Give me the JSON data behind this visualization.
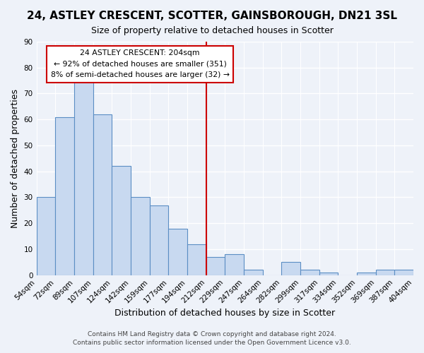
{
  "title": "24, ASTLEY CRESCENT, SCOTTER, GAINSBOROUGH, DN21 3SL",
  "subtitle": "Size of property relative to detached houses in Scotter",
  "xlabel": "Distribution of detached houses by size in Scotter",
  "ylabel": "Number of detached properties",
  "bar_color": "#c8d9f0",
  "bar_edge_color": "#5b8ec4",
  "bin_labels": [
    "54sqm",
    "72sqm",
    "89sqm",
    "107sqm",
    "124sqm",
    "142sqm",
    "159sqm",
    "177sqm",
    "194sqm",
    "212sqm",
    "229sqm",
    "247sqm",
    "264sqm",
    "282sqm",
    "299sqm",
    "317sqm",
    "334sqm",
    "352sqm",
    "369sqm",
    "387sqm",
    "404sqm"
  ],
  "bar_heights": [
    30,
    61,
    75,
    62,
    42,
    30,
    27,
    18,
    12,
    7,
    8,
    2,
    0,
    5,
    2,
    1,
    0,
    1,
    2,
    2
  ],
  "ylim": [
    0,
    90
  ],
  "yticks": [
    0,
    10,
    20,
    30,
    40,
    50,
    60,
    70,
    80,
    90
  ],
  "vline_x": 8.5,
  "vline_color": "#cc0000",
  "annotation_title": "24 ASTLEY CRESCENT: 204sqm",
  "annotation_line1": "← 92% of detached houses are smaller (351)",
  "annotation_line2": "8% of semi-detached houses are larger (32) →",
  "annotation_box_color": "#ffffff",
  "annotation_box_edge": "#cc0000",
  "footer_line1": "Contains HM Land Registry data © Crown copyright and database right 2024.",
  "footer_line2": "Contains public sector information licensed under the Open Government Licence v3.0.",
  "background_color": "#eef2f9",
  "title_fontsize": 11,
  "subtitle_fontsize": 9,
  "axis_label_fontsize": 9,
  "tick_fontsize": 7.5,
  "footer_fontsize": 6.5
}
